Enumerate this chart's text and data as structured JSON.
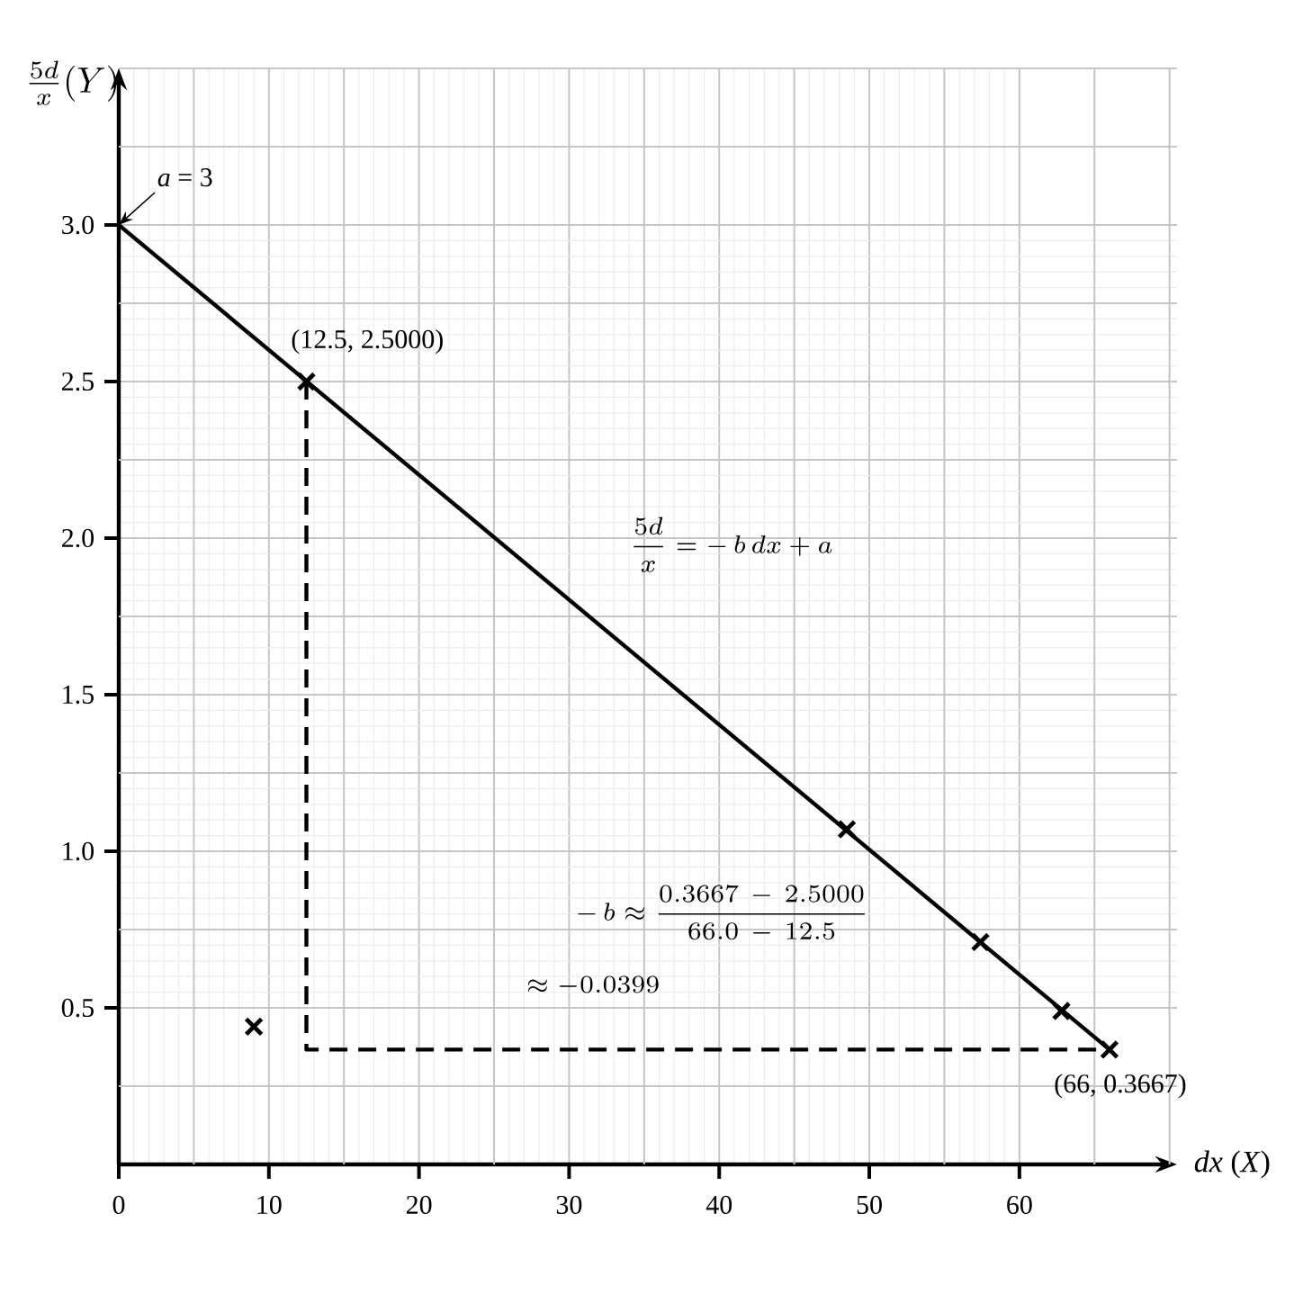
{
  "chart_data": {
    "type": "scatter",
    "xlabel": "*dx* (*X*)",
    "ylabel": "\\frac{5d}{x}(Y)",
    "xlim": [
      0,
      70.5
    ],
    "ylim": [
      0,
      3.5
    ],
    "xticks": [
      {
        "value": 0,
        "label": "0"
      },
      {
        "value": 10,
        "label": "10"
      },
      {
        "value": 20,
        "label": "20"
      },
      {
        "value": 30,
        "label": "30"
      },
      {
        "value": 40,
        "label": "40"
      },
      {
        "value": 50,
        "label": "50"
      },
      {
        "value": 60,
        "label": "60"
      }
    ],
    "yticks": [
      {
        "value": 0.5,
        "label": "0.5"
      },
      {
        "value": 1,
        "label": "1.0"
      },
      {
        "value": 1.5,
        "label": "1.5"
      },
      {
        "value": 2,
        "label": "2.0"
      },
      {
        "value": 2.5,
        "label": "2.5"
      },
      {
        "value": 3,
        "label": "3.0"
      }
    ],
    "grid": true,
    "series": [
      {
        "type": "line",
        "color": "#000000",
        "x": [
          0,
          66
        ],
        "values": [
          3,
          0.3667
        ],
        "marker": "none",
        "line_style": "solid"
      },
      {
        "type": "line",
        "color": "#000000",
        "x": [
          12.5,
          12.5,
          66
        ],
        "values": [
          2.5,
          0.3667,
          0.3667
        ],
        "marker": "none",
        "line_style": "dashed"
      },
      {
        "color": "#000000",
        "x": [
          9,
          12.5,
          48.5,
          57.4,
          62.8,
          66
        ],
        "values": [
          0.44,
          2.5,
          1.07,
          0.71,
          0.49,
          0.3667
        ],
        "marker": "cross"
      }
    ],
    "annotations": [
      {
        "text": "*a* = 3",
        "x": 0,
        "y": 3
      },
      {
        "text": "(12.5, 2.5000)",
        "x": 12.5,
        "y": 2.5
      },
      {
        "text": "(66, 0.3667)",
        "x": 66,
        "y": 0.3667
      },
      "\\frac{5d}{x} = -\\,b\\,dx + a",
      "-\\,b \\approx \\frac{0.3667\\,-\\,2.5000}{66.0\\,-\\,12.5}",
      "\\approx -0.0399"
    ]
  }
}
